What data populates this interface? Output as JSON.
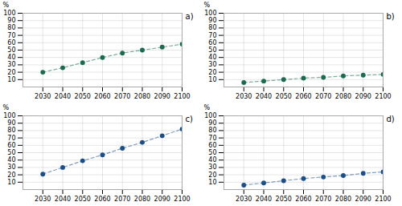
{
  "chart_data": [
    {
      "type": "line",
      "title": "a)",
      "ylabel": "%",
      "x": [
        2030,
        2040,
        2050,
        2060,
        2070,
        2080,
        2090,
        2100
      ],
      "series": [
        {
          "color": "#1a6b52",
          "marker": "circle",
          "line_style": "dashed",
          "values": [
            20,
            26,
            33,
            40,
            46,
            50,
            54,
            58
          ]
        }
      ],
      "xlim": [
        2020,
        2100
      ],
      "xticks": [
        2030,
        2040,
        2050,
        2060,
        2070,
        2080,
        2090,
        2100
      ],
      "ylim": [
        0,
        100
      ],
      "yticks": [
        10,
        20,
        30,
        40,
        50,
        60,
        70,
        80,
        90,
        100
      ],
      "grid": true
    },
    {
      "type": "line",
      "title": "b)",
      "ylabel": "%",
      "x": [
        2030,
        2040,
        2050,
        2060,
        2070,
        2080,
        2090,
        2100
      ],
      "series": [
        {
          "color": "#1a6b52",
          "marker": "circle",
          "line_style": "dashed",
          "values": [
            6,
            8,
            10,
            12,
            13,
            15,
            16,
            17
          ]
        }
      ],
      "xlim": [
        2020,
        2100
      ],
      "xticks": [
        2030,
        2040,
        2050,
        2060,
        2070,
        2080,
        2090,
        2100
      ],
      "ylim": [
        0,
        100
      ],
      "yticks": [
        10,
        20,
        30,
        40,
        50,
        60,
        70,
        80,
        90,
        100
      ],
      "grid": true
    },
    {
      "type": "line",
      "title": "c)",
      "ylabel": "%",
      "x": [
        2030,
        2040,
        2050,
        2060,
        2070,
        2080,
        2090,
        2100
      ],
      "series": [
        {
          "color": "#1a4f8a",
          "marker": "circle",
          "line_style": "dashed",
          "values": [
            21,
            30,
            39,
            47,
            56,
            64,
            73,
            82
          ]
        }
      ],
      "xlim": [
        2020,
        2100
      ],
      "xticks": [
        2030,
        2040,
        2050,
        2060,
        2070,
        2080,
        2090,
        2100
      ],
      "ylim": [
        0,
        100
      ],
      "yticks": [
        10,
        20,
        30,
        40,
        50,
        60,
        70,
        80,
        90,
        100
      ],
      "grid": true
    },
    {
      "type": "line",
      "title": "d)",
      "ylabel": "%",
      "x": [
        2030,
        2040,
        2050,
        2060,
        2070,
        2080,
        2090,
        2100
      ],
      "series": [
        {
          "color": "#1a4f8a",
          "marker": "circle",
          "line_style": "dashed",
          "values": [
            6,
            9,
            12,
            15,
            17,
            19,
            22,
            24
          ]
        }
      ],
      "xlim": [
        2020,
        2100
      ],
      "xticks": [
        2030,
        2040,
        2050,
        2060,
        2070,
        2080,
        2090,
        2100
      ],
      "ylim": [
        0,
        100
      ],
      "yticks": [
        10,
        20,
        30,
        40,
        50,
        60,
        70,
        80,
        90,
        100
      ],
      "grid": true
    }
  ]
}
